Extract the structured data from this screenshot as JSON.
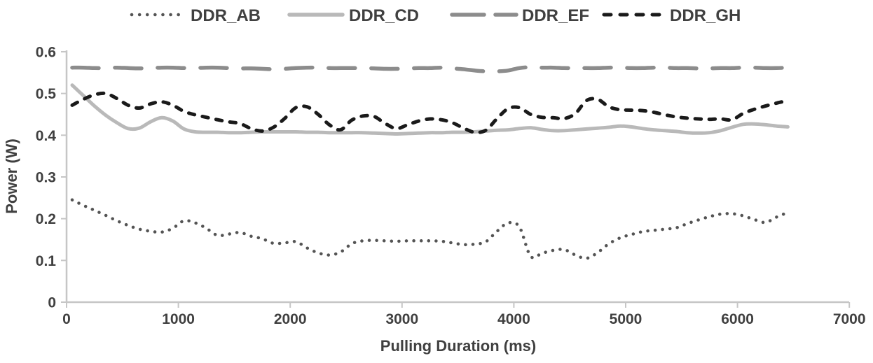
{
  "chart_data": {
    "type": "line",
    "title": "",
    "xlabel": "Pulling Duration (ms)",
    "ylabel": "Power (W)",
    "xlim": [
      0,
      7000
    ],
    "ylim": [
      0,
      0.6
    ],
    "grid": false,
    "legend_position": "top",
    "x_ticks": [
      0,
      1000,
      2000,
      3000,
      4000,
      5000,
      6000,
      7000
    ],
    "x_tick_labels": [
      "0",
      "1000",
      "2000",
      "3000",
      "4000",
      "5000",
      "6000",
      "7000"
    ],
    "y_ticks": [
      0,
      0.1,
      0.2,
      0.3,
      0.4,
      0.5,
      0.6
    ],
    "y_tick_labels": [
      "0",
      "0.1",
      "0.2",
      "0.3",
      "0.4",
      "0.5",
      "0.6"
    ],
    "x": [
      50,
      150,
      250,
      350,
      450,
      550,
      650,
      750,
      850,
      950,
      1050,
      1150,
      1250,
      1350,
      1450,
      1550,
      1650,
      1750,
      1850,
      1950,
      2050,
      2150,
      2250,
      2350,
      2450,
      2550,
      2650,
      2750,
      2850,
      2950,
      3050,
      3150,
      3250,
      3350,
      3450,
      3550,
      3650,
      3750,
      3850,
      3950,
      4050,
      4150,
      4250,
      4350,
      4450,
      4550,
      4650,
      4750,
      4850,
      4950,
      5050,
      5150,
      5250,
      5350,
      5450,
      5550,
      5650,
      5750,
      5850,
      5950,
      6050,
      6150,
      6250,
      6350,
      6450
    ],
    "series": [
      {
        "name": "DDR_AB",
        "color": "#545454",
        "style": "dotted",
        "values": [
          0.245,
          0.232,
          0.22,
          0.208,
          0.195,
          0.184,
          0.175,
          0.17,
          0.168,
          0.177,
          0.195,
          0.19,
          0.177,
          0.16,
          0.163,
          0.167,
          0.158,
          0.152,
          0.141,
          0.142,
          0.145,
          0.13,
          0.118,
          0.113,
          0.12,
          0.14,
          0.147,
          0.148,
          0.147,
          0.146,
          0.147,
          0.147,
          0.147,
          0.146,
          0.142,
          0.138,
          0.139,
          0.145,
          0.17,
          0.19,
          0.18,
          0.11,
          0.117,
          0.124,
          0.126,
          0.113,
          0.105,
          0.119,
          0.14,
          0.154,
          0.162,
          0.169,
          0.172,
          0.175,
          0.178,
          0.188,
          0.197,
          0.205,
          0.211,
          0.212,
          0.207,
          0.198,
          0.191,
          0.204,
          0.215
        ]
      },
      {
        "name": "DDR_CD",
        "color": "#b9b9b9",
        "style": "solid",
        "values": [
          0.52,
          0.495,
          0.47,
          0.448,
          0.43,
          0.416,
          0.417,
          0.432,
          0.442,
          0.434,
          0.415,
          0.408,
          0.407,
          0.407,
          0.406,
          0.406,
          0.407,
          0.408,
          0.408,
          0.408,
          0.408,
          0.407,
          0.407,
          0.406,
          0.406,
          0.406,
          0.406,
          0.405,
          0.404,
          0.403,
          0.404,
          0.405,
          0.406,
          0.406,
          0.407,
          0.407,
          0.408,
          0.41,
          0.412,
          0.413,
          0.416,
          0.418,
          0.414,
          0.411,
          0.411,
          0.413,
          0.415,
          0.417,
          0.419,
          0.422,
          0.42,
          0.416,
          0.413,
          0.411,
          0.409,
          0.406,
          0.405,
          0.406,
          0.411,
          0.419,
          0.426,
          0.427,
          0.425,
          0.422,
          0.42
        ]
      },
      {
        "name": "DDR_EF",
        "color": "#8c8c8c",
        "style": "long-dash",
        "values": [
          0.562,
          0.562,
          0.561,
          0.561,
          0.562,
          0.561,
          0.56,
          0.561,
          0.562,
          0.562,
          0.561,
          0.561,
          0.562,
          0.562,
          0.561,
          0.56,
          0.56,
          0.559,
          0.558,
          0.559,
          0.561,
          0.562,
          0.562,
          0.561,
          0.561,
          0.561,
          0.561,
          0.56,
          0.559,
          0.559,
          0.56,
          0.561,
          0.561,
          0.562,
          0.56,
          0.558,
          0.555,
          0.553,
          0.553,
          0.555,
          0.561,
          0.563,
          0.562,
          0.562,
          0.561,
          0.561,
          0.561,
          0.561,
          0.562,
          0.562,
          0.561,
          0.561,
          0.562,
          0.562,
          0.561,
          0.561,
          0.56,
          0.56,
          0.561,
          0.561,
          0.562,
          0.562,
          0.561,
          0.561,
          0.562
        ]
      },
      {
        "name": "DDR_GH",
        "color": "#1a1a1a",
        "style": "dash",
        "values": [
          0.472,
          0.486,
          0.497,
          0.5,
          0.488,
          0.472,
          0.465,
          0.475,
          0.48,
          0.472,
          0.457,
          0.449,
          0.443,
          0.437,
          0.432,
          0.428,
          0.416,
          0.41,
          0.419,
          0.44,
          0.466,
          0.468,
          0.45,
          0.425,
          0.413,
          0.436,
          0.446,
          0.445,
          0.428,
          0.416,
          0.425,
          0.434,
          0.439,
          0.437,
          0.43,
          0.417,
          0.407,
          0.412,
          0.44,
          0.464,
          0.466,
          0.45,
          0.443,
          0.442,
          0.44,
          0.452,
          0.483,
          0.486,
          0.468,
          0.461,
          0.46,
          0.459,
          0.455,
          0.449,
          0.444,
          0.441,
          0.439,
          0.438,
          0.439,
          0.437,
          0.452,
          0.462,
          0.47,
          0.477,
          0.483
        ]
      }
    ]
  },
  "colors": {
    "axis": "#c6c6c6",
    "text": "#404040"
  }
}
